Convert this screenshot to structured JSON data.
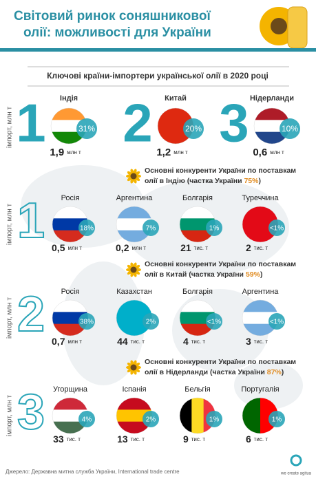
{
  "header": {
    "title_lines": [
      "Світовий ринок соняшникової",
      "олії: можливості для України"
    ]
  },
  "subtitle": "Ключові країни-імпортери української олії в 2020 році",
  "axis_label": "імпорт, млн т",
  "importers": [
    {
      "rank": "1",
      "country": "Індія",
      "share": "31%",
      "amount": "1,9",
      "unit": "млн т"
    },
    {
      "rank": "2",
      "country": "Китай",
      "share": "20%",
      "amount": "1,2",
      "unit": "млн т"
    },
    {
      "rank": "3",
      "country": "Нідерланди",
      "share": "10%",
      "amount": "0,6",
      "unit": "млн т"
    }
  ],
  "sections": [
    {
      "heading_line1": "Основні конкуренти України по поставкам",
      "heading_line2": "олії в Індію (частка України ",
      "share": "75%",
      "close": ")",
      "rank": "1",
      "items": [
        {
          "country": "Росія",
          "share": "18%",
          "amount": "0,5",
          "unit": "млн т"
        },
        {
          "country": "Аргентина",
          "share": "7%",
          "amount": "0,2",
          "unit": "млн т"
        },
        {
          "country": "Болгарія",
          "share": "1%",
          "amount": "21",
          "unit": "тис. т"
        },
        {
          "country": "Туреччина",
          "share": "<1%",
          "amount": "2",
          "unit": "тис. т"
        }
      ]
    },
    {
      "heading_line1": "Основні конкуренти України по поставкам",
      "heading_line2": "олії в Китай (частка України ",
      "share": "59%",
      "close": ")",
      "rank": "2",
      "items": [
        {
          "country": "Росія",
          "share": "38%",
          "amount": "0,7",
          "unit": "млн т"
        },
        {
          "country": "Казахстан",
          "share": "2%",
          "amount": "44",
          "unit": "тис. т"
        },
        {
          "country": "Болгарія",
          "share": "<1%",
          "amount": "4",
          "unit": "тис. т"
        },
        {
          "country": "Аргентина",
          "share": "<1%",
          "amount": "3",
          "unit": "тис. т"
        }
      ]
    },
    {
      "heading_line1": "Основні конкуренти України по поставкам",
      "heading_line2": "олії в Нідерланди (частка України ",
      "share": "87%",
      "close": ")",
      "rank": "3",
      "items": [
        {
          "country": "Угорщина",
          "share": "4%",
          "amount": "33",
          "unit": "тис. т"
        },
        {
          "country": "Іспанія",
          "share": "2%",
          "amount": "13",
          "unit": "тис. т"
        },
        {
          "country": "Бельгія",
          "share": "1%",
          "amount": "9",
          "unit": "тис. т"
        },
        {
          "country": "Португалія",
          "share": "1%",
          "amount": "6",
          "unit": "тис. т"
        }
      ]
    }
  ],
  "footer": {
    "source": "Джерело: Державна митна служба України, International trade centre",
    "logo": "we create agitua"
  }
}
